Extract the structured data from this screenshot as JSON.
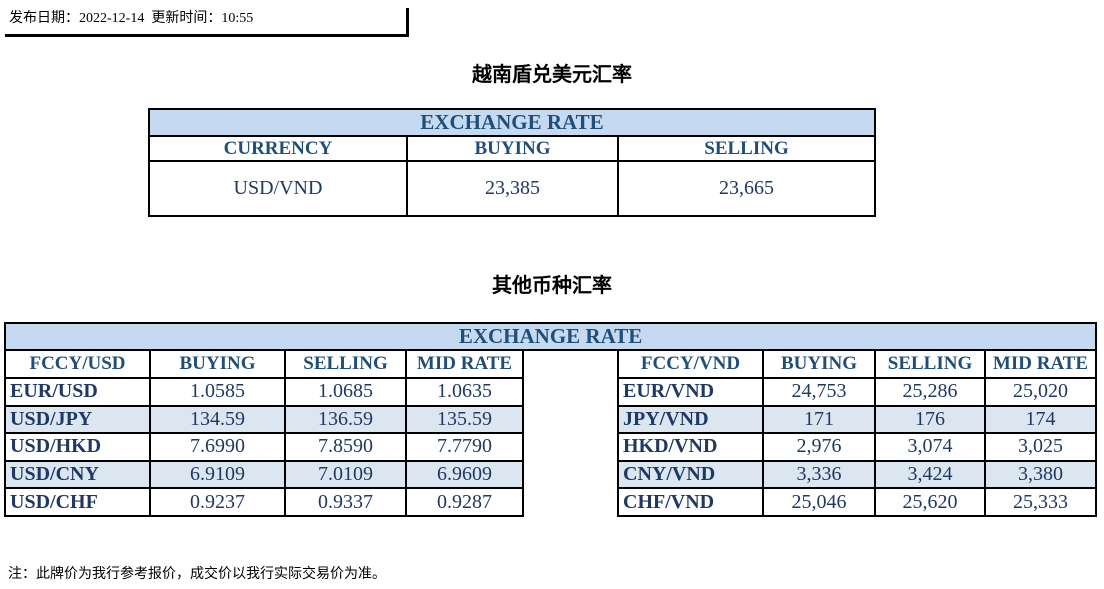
{
  "header": {
    "publish_label": "发布日期：",
    "publish_date": "2022-12-14",
    "update_label": "更新时间：",
    "update_time": "10:55"
  },
  "vnd_section": {
    "title": "越南盾兑美元汇率",
    "banner": "EXCHANGE RATE",
    "headers": [
      "CURRENCY",
      "BUYING",
      "SELLING"
    ],
    "rows": [
      [
        "USD/VND",
        "23,385",
        "23,665"
      ]
    ]
  },
  "other_section": {
    "title": "其他币种汇率",
    "banner": "EXCHANGE  RATE",
    "left_headers": [
      "FCCY/USD",
      "BUYING",
      "SELLING",
      "MID RATE"
    ],
    "right_headers": [
      "FCCY/VND",
      "BUYING",
      "SELLING",
      "MID RATE"
    ],
    "left_rows": [
      [
        "EUR/USD",
        "1.0585",
        "1.0685",
        "1.0635"
      ],
      [
        "USD/JPY",
        "134.59",
        "136.59",
        "135.59"
      ],
      [
        "USD/HKD",
        "7.6990",
        "7.8590",
        "7.7790"
      ],
      [
        "USD/CNY",
        "6.9109",
        "7.0109",
        "6.9609"
      ],
      [
        "USD/CHF",
        "0.9237",
        "0.9337",
        "0.9287"
      ]
    ],
    "right_rows": [
      [
        "EUR/VND",
        "24,753",
        "25,286",
        "25,020"
      ],
      [
        "JPY/VND",
        "171",
        "176",
        "174"
      ],
      [
        "HKD/VND",
        "2,976",
        "3,074",
        "3,025"
      ],
      [
        "CNY/VND",
        "3,336",
        "3,424",
        "3,380"
      ],
      [
        "CHF/VND",
        "25,046",
        "25,620",
        "25,333"
      ]
    ]
  },
  "footnote": "注：此牌价为我行参考报价，成交价以我行实际交易价为准。"
}
